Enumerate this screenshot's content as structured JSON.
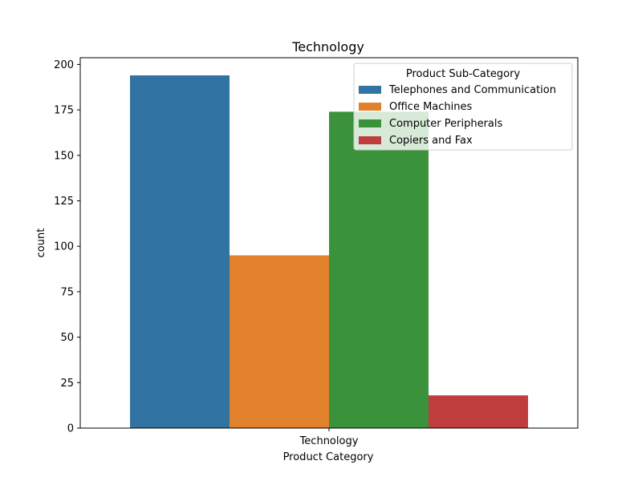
{
  "chart_data": {
    "type": "bar",
    "title": "Technology",
    "xlabel": "Product Category",
    "ylabel": "count",
    "categories": [
      "Technology"
    ],
    "series": [
      {
        "name": "Telephones and Communication",
        "values": [
          194
        ],
        "color": "#3274a1"
      },
      {
        "name": "Office Machines",
        "values": [
          95
        ],
        "color": "#e1812c"
      },
      {
        "name": "Computer Peripherals",
        "values": [
          174
        ],
        "color": "#3a923a"
      },
      {
        "name": "Copiers and Fax",
        "values": [
          18
        ],
        "color": "#c03d3e"
      }
    ],
    "ylim": [
      0,
      203.7
    ],
    "yticks": [
      0,
      25,
      50,
      75,
      100,
      125,
      150,
      175,
      200
    ],
    "legend": {
      "title": "Product Sub-Category",
      "position": "top-right"
    },
    "grid": false
  }
}
